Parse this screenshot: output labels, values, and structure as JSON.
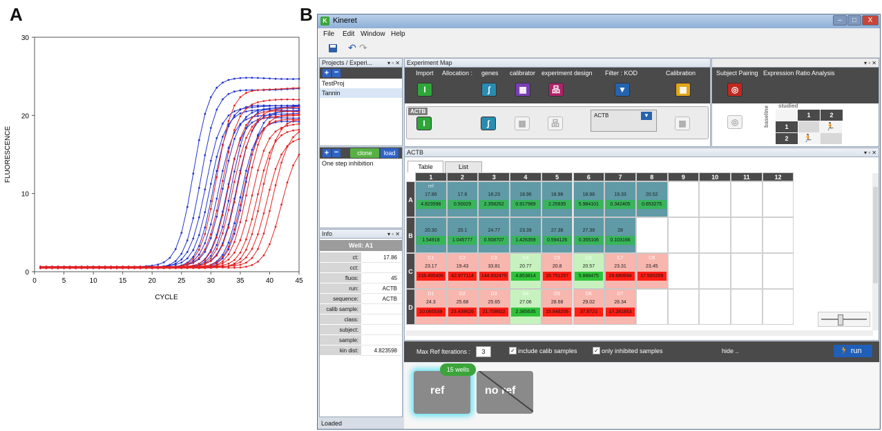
{
  "panel_labels": {
    "a": "A",
    "b": "B"
  },
  "chart_data": {
    "type": "line",
    "xlabel": "CYCLE",
    "ylabel": "FLUORESCENCE",
    "xlim": [
      0,
      45
    ],
    "ylim": [
      0,
      30
    ],
    "xticks": [
      "0",
      "5",
      "10",
      "15",
      "20",
      "25",
      "30",
      "35",
      "40",
      "45"
    ],
    "yticks": [
      "0",
      "10",
      "20",
      "30"
    ],
    "series_colors": {
      "blue": "#2233cc",
      "red": "#e32222"
    },
    "series": [
      {
        "color": "blue",
        "ct": 23.5,
        "plateau": 24.2
      },
      {
        "color": "blue",
        "ct": 24.8,
        "plateau": 22.8
      },
      {
        "color": "blue",
        "ct": 25.6,
        "plateau": 20.6
      },
      {
        "color": "blue",
        "ct": 26.3,
        "plateau": 20.1
      },
      {
        "color": "blue",
        "ct": 27.0,
        "plateau": 20.8
      },
      {
        "color": "blue",
        "ct": 27.8,
        "plateau": 19.6
      },
      {
        "color": "blue",
        "ct": 28.5,
        "plateau": 20.3
      },
      {
        "color": "blue",
        "ct": 29.2,
        "plateau": 19.2
      },
      {
        "color": "blue",
        "ct": 30.0,
        "plateau": 20.6
      },
      {
        "color": "blue",
        "ct": 30.8,
        "plateau": 19.9
      },
      {
        "color": "blue",
        "ct": 31.6,
        "plateau": 18.7
      },
      {
        "color": "blue",
        "ct": 32.3,
        "plateau": 20.2
      },
      {
        "color": "red",
        "ct": 27.5,
        "plateau": 22.9
      },
      {
        "color": "red",
        "ct": 28.4,
        "plateau": 21.4
      },
      {
        "color": "red",
        "ct": 29.4,
        "plateau": 20.0
      },
      {
        "color": "red",
        "ct": 30.2,
        "plateau": 19.5
      },
      {
        "color": "red",
        "ct": 31.0,
        "plateau": 20.4
      },
      {
        "color": "red",
        "ct": 31.9,
        "plateau": 18.9
      },
      {
        "color": "red",
        "ct": 32.7,
        "plateau": 19.7
      },
      {
        "color": "red",
        "ct": 33.5,
        "plateau": 18.4
      },
      {
        "color": "red",
        "ct": 34.3,
        "plateau": 17.6
      },
      {
        "color": "red",
        "ct": 35.2,
        "plateau": 19.1
      },
      {
        "color": "red",
        "ct": 36.0,
        "plateau": 16.8
      },
      {
        "color": "red",
        "ct": 37.0,
        "plateau": 17.9
      },
      {
        "color": "red",
        "ct": 38.5,
        "plateau": 15.9
      }
    ]
  },
  "app": {
    "title": "Kineret",
    "window_buttons": [
      "–",
      "□",
      "X"
    ],
    "menu": [
      "File",
      "Edit",
      "Window",
      "Help"
    ],
    "projects_panel": {
      "title": "Projects / Experi...",
      "items": [
        "TestProj",
        "Tannin"
      ]
    },
    "experiments_panel": {
      "clone": "clone",
      "load": "load",
      "items": [
        "One step inhibition"
      ]
    },
    "info_panel": {
      "title": "Info",
      "well": "Well: A1",
      "rows": [
        {
          "k": "ct:",
          "v": "17.86"
        },
        {
          "k": "cct:",
          "v": ""
        },
        {
          "k": "fluos:",
          "v": "45"
        },
        {
          "k": "run:",
          "v": "ACTB"
        },
        {
          "k": "sequence:",
          "v": "ACTB"
        },
        {
          "k": "calib sample:",
          "v": ""
        },
        {
          "k": "class:",
          "v": ""
        },
        {
          "k": "subject:",
          "v": ""
        },
        {
          "k": "sample:",
          "v": ""
        },
        {
          "k": "kin dist:",
          "v": "4.823598"
        }
      ]
    },
    "experiment_map": {
      "title": "Experiment Map",
      "headers": {
        "import": "Import",
        "allocation": "Allocation :",
        "genes": "genes",
        "calibrator": "calibrator",
        "design": "experiment design",
        "filter": "Filter : KOD",
        "calibration": "Calibration"
      },
      "actb_tag": "ACTB",
      "filter_value": "ACTB"
    },
    "analysis": {
      "subject_pairing": "Subject Pairing",
      "ratio": "Expression Ratio Analysis",
      "studied": "studied",
      "baseline": "baseline",
      "col_heads": [
        "1",
        "2"
      ],
      "row_heads": [
        "1",
        "2"
      ]
    },
    "plate": {
      "title": "ACTB",
      "tabs": [
        "Table",
        "List"
      ],
      "columns": [
        "1",
        "2",
        "3",
        "4",
        "5",
        "6",
        "7",
        "8",
        "9",
        "10",
        "11",
        "12"
      ],
      "rows": [
        "A",
        "B",
        "C",
        "D"
      ],
      "row_a": {
        "tag": "ref",
        "ct": [
          "17.86",
          "17.6",
          "18.23",
          "18.96",
          "18.98",
          "18.98",
          "19.33",
          "20.52"
        ],
        "val": [
          "4.823598",
          "0.50029",
          "2.358262",
          "0.917989",
          "2.25835",
          "5.984101",
          "0.342405",
          "0.653275"
        ]
      },
      "row_b": {
        "ct": [
          "20.30",
          "20.1",
          "24.77",
          "23.39",
          "27.38",
          "27.39",
          "28"
        ],
        "val": [
          "1.54918",
          "1.045777",
          "0.508707",
          "1.426359",
          "0.594126",
          "0.355106",
          "0.103166"
        ]
      },
      "row_c": {
        "ids": [
          "C1",
          "C2",
          "C3",
          "C4",
          "C5",
          "C6",
          "C7",
          "C8"
        ],
        "ct": [
          "23.17",
          "19.43",
          "33.81",
          "20.77",
          "20.8",
          "20.57",
          "23.31",
          "23.45"
        ],
        "val": [
          "218.495406",
          "42.977114",
          "144.932475",
          "4.853814",
          "15.751257",
          "5.888475",
          "29.680694",
          "17.500209"
        ]
      },
      "row_d": {
        "ids": [
          "D1",
          "D2",
          "D3",
          "D4",
          "D5",
          "D6",
          "D7"
        ],
        "ct": [
          "24.3",
          "25.68",
          "25.65",
          "27.06",
          "28.68",
          "29.02",
          "28.34"
        ],
        "val": [
          "10.065539",
          "23.439626",
          "21.708922",
          "2.385635",
          "15.848206",
          "37.8721",
          "17.281853"
        ]
      },
      "colors": {
        "ref": "#4f8f9c",
        "green": "#2fc23a",
        "lightgreen": "#c7f2bf",
        "red": "#ff1d14",
        "pink": "#f7b6ae"
      }
    },
    "bottom": {
      "max_ref_label": "Max Ref Iterations :",
      "max_ref_value": "3",
      "include_calib": "include calib samples",
      "only_inhibited": "only inhibited samples",
      "hide": "hide ..",
      "run": "run",
      "badge": "15 wells",
      "ref": "ref",
      "noref": "no ref"
    },
    "status": "Loaded"
  }
}
